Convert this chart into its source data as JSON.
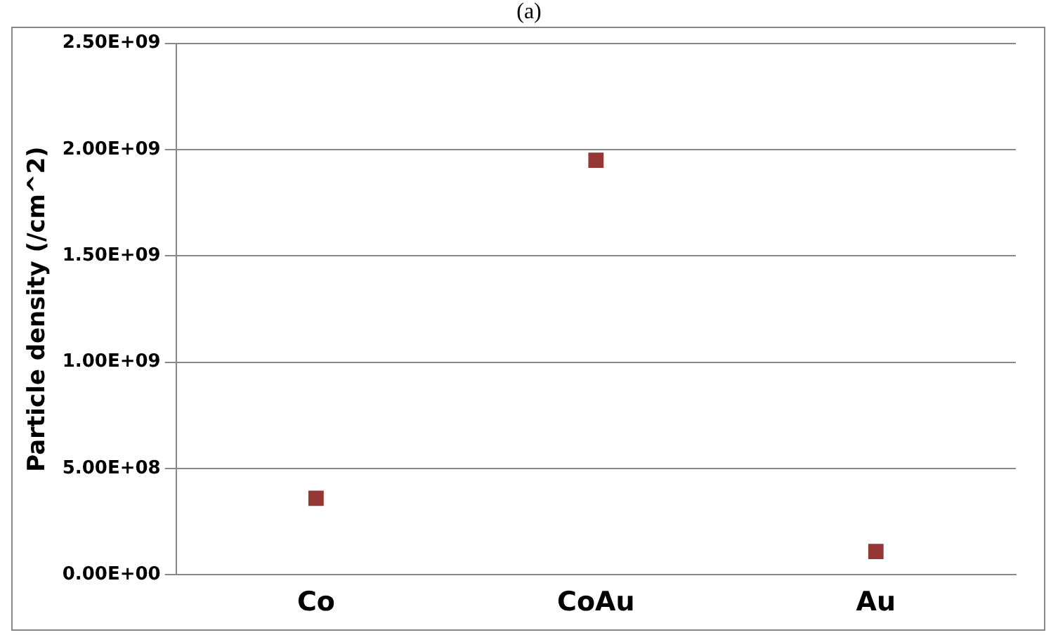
{
  "chart_data": {
    "type": "scatter",
    "title": "(a)",
    "ylabel": "Particle density (/cm^2)",
    "categories": [
      "Co",
      "CoAu",
      "Au"
    ],
    "series": [
      {
        "color": "#953735",
        "values": [
          360000000,
          1950000000,
          110000000
        ]
      }
    ],
    "ylim": [
      0,
      2500000000
    ],
    "yticks": [
      {
        "value": 0,
        "label": "0.00E+00"
      },
      {
        "value": 500000000,
        "label": "5.00E+08"
      },
      {
        "value": 1000000000,
        "label": "1.00E+09"
      },
      {
        "value": 1500000000,
        "label": "1.50E+09"
      },
      {
        "value": 2000000000,
        "label": "2.00E+09"
      },
      {
        "value": 2500000000,
        "label": "2.50E+09"
      }
    ],
    "grid": "y",
    "legend": false,
    "marker": "square"
  }
}
